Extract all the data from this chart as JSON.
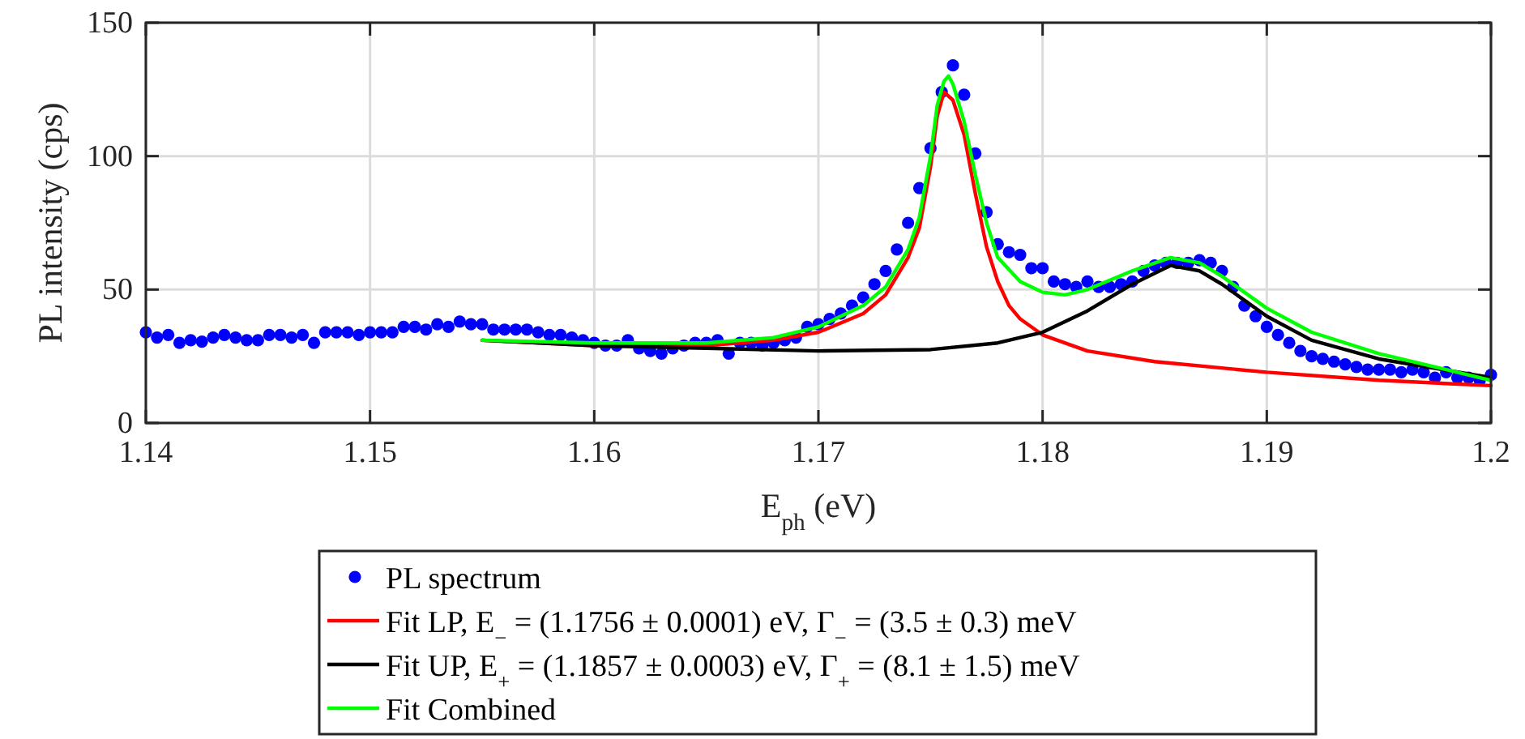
{
  "chart_data": {
    "type": "line",
    "xlabel": "E$_{ph}$ (eV)",
    "ylabel": "PL intensity (cps)",
    "xlim": [
      1.14,
      1.2
    ],
    "ylim": [
      0,
      150
    ],
    "xticks": [
      1.14,
      1.15,
      1.16,
      1.17,
      1.18,
      1.19,
      1.2
    ],
    "yticks": [
      0,
      50,
      100,
      150
    ],
    "grid": true,
    "legend": "bottom",
    "series": [
      {
        "name": "PL spectrum",
        "type": "scatter",
        "marker": "circle",
        "color": "#0000ff",
        "x": [
          1.14,
          1.1405,
          1.141,
          1.1415,
          1.142,
          1.1425,
          1.143,
          1.1435,
          1.144,
          1.1445,
          1.145,
          1.1455,
          1.146,
          1.1465,
          1.147,
          1.1475,
          1.148,
          1.1485,
          1.149,
          1.1495,
          1.15,
          1.1505,
          1.151,
          1.1515,
          1.152,
          1.1525,
          1.153,
          1.1535,
          1.154,
          1.1545,
          1.155,
          1.1555,
          1.156,
          1.1565,
          1.157,
          1.1575,
          1.158,
          1.1585,
          1.159,
          1.1595,
          1.16,
          1.1605,
          1.161,
          1.1615,
          1.162,
          1.1625,
          1.163,
          1.1635,
          1.164,
          1.1645,
          1.165,
          1.1655,
          1.166,
          1.1665,
          1.167,
          1.1675,
          1.168,
          1.1685,
          1.169,
          1.1695,
          1.17,
          1.1705,
          1.171,
          1.1715,
          1.172,
          1.1725,
          1.173,
          1.1735,
          1.174,
          1.1745,
          1.175,
          1.1755,
          1.176,
          1.1765,
          1.177,
          1.1775,
          1.178,
          1.1785,
          1.179,
          1.1795,
          1.18,
          1.1805,
          1.181,
          1.1815,
          1.182,
          1.1825,
          1.183,
          1.1835,
          1.184,
          1.1845,
          1.185,
          1.1855,
          1.186,
          1.1865,
          1.187,
          1.1875,
          1.188,
          1.1885,
          1.189,
          1.1895,
          1.19,
          1.1905,
          1.191,
          1.1915,
          1.192,
          1.1925,
          1.193,
          1.1935,
          1.194,
          1.1945,
          1.195,
          1.1955,
          1.196,
          1.1965,
          1.197,
          1.1975,
          1.198,
          1.1985,
          1.199,
          1.1995,
          1.2
        ],
        "values": [
          34,
          32,
          33,
          30,
          31,
          30.5,
          32,
          33,
          32,
          31,
          31,
          33,
          33,
          32,
          33,
          30,
          34,
          34,
          34,
          33,
          34,
          34,
          34,
          36,
          36,
          35,
          37,
          36,
          38,
          37,
          37,
          35,
          35,
          35,
          35,
          34,
          33,
          33,
          32,
          31,
          30,
          29,
          29,
          31,
          28,
          27,
          26,
          28,
          29,
          30,
          30,
          31,
          26,
          30,
          30,
          29,
          30,
          31,
          32,
          36,
          37,
          39,
          41,
          44,
          47,
          52,
          57,
          65,
          75,
          88,
          103,
          124,
          134,
          123,
          101,
          79,
          67,
          64,
          63,
          58,
          58,
          53,
          52,
          51,
          53,
          51,
          51,
          52,
          53,
          57,
          59,
          60,
          60,
          60,
          61,
          60,
          57,
          51,
          44,
          40,
          36,
          33,
          30,
          27,
          25,
          24,
          23,
          22,
          21,
          20,
          20,
          20,
          19,
          20,
          19,
          17,
          19,
          17,
          17,
          16,
          18
        ]
      },
      {
        "name": "Fit LP, E$_{−}$ = (1.1756 ± 0.0001) eV, Γ$_{−}$ = (3.5 ± 0.3) meV",
        "color": "#ff0000",
        "x": [
          1.155,
          1.16,
          1.165,
          1.168,
          1.17,
          1.172,
          1.173,
          1.174,
          1.1745,
          1.175,
          1.1753,
          1.1756,
          1.176,
          1.1765,
          1.177,
          1.1775,
          1.178,
          1.1785,
          1.179,
          1.18,
          1.182,
          1.185,
          1.19,
          1.195,
          1.2
        ],
        "values": [
          31,
          29,
          29,
          31,
          34,
          41,
          48,
          62,
          73,
          96,
          115,
          124,
          121,
          108,
          86,
          66,
          53,
          44,
          39,
          33,
          27,
          23,
          19,
          16,
          14
        ]
      },
      {
        "name": "Fit UP, E$_{+}$ = (1.1857 ± 0.0003) eV, Γ$_{+}$ = (8.1 ± 1.5) meV",
        "color": "#000000",
        "x": [
          1.155,
          1.16,
          1.165,
          1.17,
          1.175,
          1.178,
          1.18,
          1.182,
          1.184,
          1.1857,
          1.187,
          1.188,
          1.19,
          1.192,
          1.195,
          1.2
        ],
        "values": [
          31,
          29,
          28,
          27,
          27.5,
          30,
          34,
          42,
          52,
          59,
          57,
          52,
          40,
          31,
          24,
          17
        ]
      },
      {
        "name": "Fit Combined",
        "color": "#00ff00",
        "x": [
          1.155,
          1.16,
          1.165,
          1.168,
          1.17,
          1.172,
          1.173,
          1.174,
          1.1745,
          1.175,
          1.1753,
          1.1756,
          1.1758,
          1.176,
          1.1765,
          1.177,
          1.1775,
          1.178,
          1.179,
          1.18,
          1.181,
          1.182,
          1.184,
          1.1857,
          1.187,
          1.188,
          1.19,
          1.192,
          1.195,
          1.2
        ],
        "values": [
          31,
          30,
          30,
          32,
          36,
          44,
          51,
          65,
          77,
          100,
          119,
          128,
          130,
          127,
          113,
          93,
          75,
          62,
          53,
          49,
          48,
          50,
          57,
          62,
          60,
          55,
          43,
          34,
          26,
          16
        ]
      }
    ]
  }
}
